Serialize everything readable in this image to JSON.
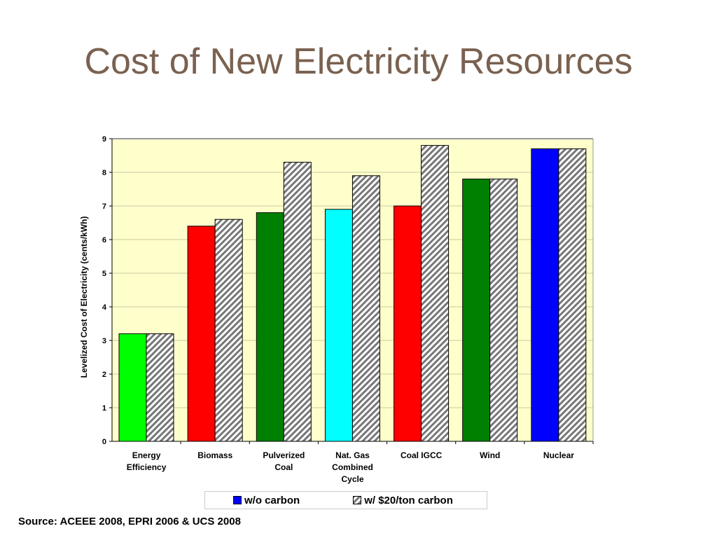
{
  "title": "Cost of New Electricity Resources",
  "source": "Source: ACEEE 2008, EPRI 2006 & UCS 2008",
  "chart_data": {
    "type": "bar",
    "title": "",
    "xlabel": "",
    "ylabel": "Levelized Cost of Electricity (cents/kWh)",
    "ylim": [
      0,
      9
    ],
    "yticks": [
      "0",
      "1",
      "2",
      "3",
      "4",
      "5",
      "6",
      "7",
      "8",
      "9"
    ],
    "grid": true,
    "legend_position": "bottom",
    "categories": [
      [
        "Energy",
        "Efficiency"
      ],
      [
        "Biomass"
      ],
      [
        "Pulverized",
        "Coal"
      ],
      [
        "Nat. Gas",
        "Combined",
        "Cycle"
      ],
      [
        "Coal IGCC"
      ],
      [
        "Wind"
      ],
      [
        "Nuclear"
      ]
    ],
    "series": [
      {
        "name": "w/o carbon",
        "values": [
          3.2,
          6.4,
          6.8,
          6.9,
          7.0,
          7.8,
          8.7
        ],
        "colors": [
          "#00ff00",
          "#ff0000",
          "#008000",
          "#00ffff",
          "#ff0000",
          "#008000",
          "#0000ff"
        ]
      },
      {
        "name": "w/ $20/ton carbon",
        "values": [
          3.2,
          6.6,
          8.3,
          7.9,
          8.8,
          7.8,
          8.7
        ],
        "pattern": "hatched"
      }
    ]
  },
  "legend_color": "#0000ff"
}
